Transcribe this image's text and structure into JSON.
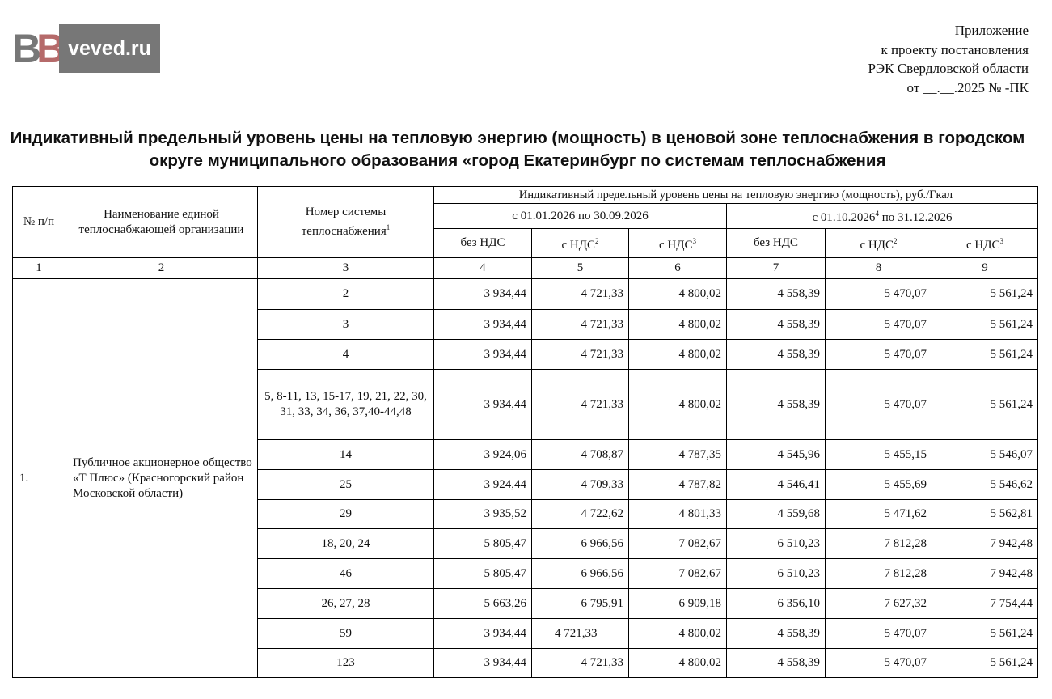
{
  "appendix": {
    "line1": "Приложение",
    "line2": "к проекту постановления",
    "line3": "РЭК Свердловской области",
    "line4": "от __.__.2025 №   -ПК"
  },
  "title": "Индикативный предельный уровень цены на тепловую энергию (мощность) в ценовой зоне теплоснабжения в городском округе муниципального образования «город Екатеринбург по системам теплоснабжения",
  "header": {
    "col_num": "№ п/п",
    "col_org": "Наименование единой теплоснабжающей организации",
    "col_system": "Номер системы теплоснабжения",
    "col_system_sup": "1",
    "price_group": "Индикативный предельный уровень цены на тепловую энергию (мощность), руб./Гкал",
    "period1": "с 01.01.2026 по 30.09.2026",
    "period2_a": "с 01.10.2026",
    "period2_sup": "4",
    "period2_b": " по 31.12.2026",
    "no_vat": "без НДС",
    "with_vat": "с НДС",
    "sup2": "2",
    "sup3": "3",
    "col_numbers": [
      "1",
      "2",
      "3",
      "4",
      "5",
      "6",
      "7",
      "8",
      "9"
    ]
  },
  "group": {
    "num": "1.",
    "org": "Публичное акционерное общество «Т Плюс» (Красногорский район Московской области)"
  },
  "rows": [
    {
      "system": "2",
      "v": [
        "3 934,44",
        "4 721,33",
        "4 800,02",
        "4 558,39",
        "5 470,07",
        "5 561,24"
      ]
    },
    {
      "system": "3",
      "v": [
        "3 934,44",
        "4 721,33",
        "4 800,02",
        "4 558,39",
        "5 470,07",
        "5 561,24"
      ]
    },
    {
      "system": "4",
      "v": [
        "3 934,44",
        "4 721,33",
        "4 800,02",
        "4 558,39",
        "5 470,07",
        "5 561,24"
      ]
    },
    {
      "system": "5, 8-11, 13, 15-17, 19, 21, 22, 30, 31, 33, 34, 36, 37,40-44,48",
      "v": [
        "3 934,44",
        "4 721,33",
        "4 800,02",
        "4 558,39",
        "5 470,07",
        "5 561,24"
      ]
    },
    {
      "system": "14",
      "v": [
        "3 924,06",
        "4 708,87",
        "4 787,35",
        "4 545,96",
        "5 455,15",
        "5 546,07"
      ]
    },
    {
      "system": "25",
      "v": [
        "3 924,44",
        "4 709,33",
        "4 787,82",
        "4 546,41",
        "5 455,69",
        "5 546,62"
      ]
    },
    {
      "system": "29",
      "v": [
        "3 935,52",
        "4 722,62",
        "4 801,33",
        "4 559,68",
        "5 471,62",
        "5 562,81"
      ]
    },
    {
      "system": "18, 20, 24",
      "v": [
        "5 805,47",
        "6 966,56",
        "7 082,67",
        "6 510,23",
        "7 812,28",
        "7 942,48"
      ]
    },
    {
      "system": "46",
      "v": [
        "5 805,47",
        "6 966,56",
        "7 082,67",
        "6 510,23",
        "7 812,28",
        "7 942,48"
      ]
    },
    {
      "system": "26, 27, 28",
      "v": [
        "5 663,26",
        "6 795,91",
        "6 909,18",
        "6 356,10",
        "7 627,32",
        "7 754,44"
      ]
    },
    {
      "system": "59",
      "v": [
        "3 934,44",
        "4 721,33",
        "4 800,02",
        "4 558,39",
        "5 470,07",
        "5 561,24"
      ]
    },
    {
      "system": "123",
      "v": [
        "3 934,44",
        "4 721,33",
        "4 800,02",
        "4 558,39",
        "5 470,07",
        "5 561,24"
      ]
    }
  ],
  "watermark": {
    "logo": "ВВ",
    "site": "veved.ru"
  }
}
